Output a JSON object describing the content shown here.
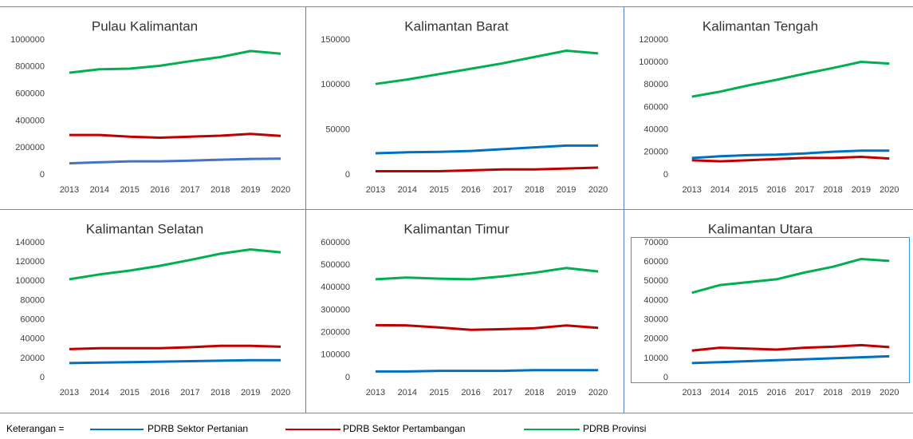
{
  "chart_data": [
    {
      "type": "line",
      "title": "Pulau Kalimantan",
      "categories": [
        "2013",
        "2014",
        "2015",
        "2016",
        "2017",
        "2018",
        "2019",
        "2020"
      ],
      "series": [
        {
          "color": "#4472c4",
          "values": [
            85000,
            93000,
            100000,
            100000,
            105000,
            112000,
            118000,
            120000
          ]
        },
        {
          "color": "#c00000",
          "values": [
            295000,
            295000,
            282000,
            275000,
            283000,
            290000,
            303000,
            288000
          ]
        },
        {
          "color": "#00b050",
          "values": [
            757000,
            782000,
            787000,
            808000,
            842000,
            873000,
            918000,
            898000
          ]
        }
      ],
      "ylim": [
        0,
        1000000
      ],
      "yticks": [
        0,
        200000,
        400000,
        600000,
        800000,
        1000000
      ]
    },
    {
      "type": "line",
      "title": "Kalimantan Barat",
      "categories": [
        "2013",
        "2014",
        "2015",
        "2016",
        "2017",
        "2018",
        "2019",
        "2020"
      ],
      "series": [
        {
          "color": "#0070c0",
          "values": [
            24000,
            25000,
            25500,
            26500,
            28500,
            30500,
            32500,
            32500
          ]
        },
        {
          "color": "#c00000",
          "values": [
            4000,
            4000,
            4000,
            5000,
            6000,
            6000,
            7000,
            8000
          ]
        },
        {
          "color": "#00b050",
          "values": [
            101000,
            106000,
            112000,
            118000,
            124000,
            131000,
            138000,
            135000
          ]
        }
      ],
      "ylim": [
        0,
        150000
      ],
      "yticks": [
        0,
        50000,
        100000,
        150000
      ]
    },
    {
      "type": "line",
      "title": "Kalimantan Tengah",
      "categories": [
        "2013",
        "2014",
        "2015",
        "2016",
        "2017",
        "2018",
        "2019",
        "2020"
      ],
      "series": [
        {
          "color": "#0070c0",
          "values": [
            15000,
            16500,
            17500,
            18000,
            19000,
            20500,
            21500,
            21500
          ]
        },
        {
          "color": "#c00000",
          "values": [
            13000,
            12000,
            13000,
            14000,
            15000,
            15000,
            16000,
            14500
          ]
        },
        {
          "color": "#00b050",
          "values": [
            69500,
            74000,
            79500,
            84500,
            90000,
            95000,
            100500,
            99000
          ]
        }
      ],
      "ylim": [
        0,
        120000
      ],
      "yticks": [
        0,
        20000,
        40000,
        60000,
        80000,
        100000,
        120000
      ]
    },
    {
      "type": "line",
      "title": "Kalimantan Selatan",
      "categories": [
        "2013",
        "2014",
        "2015",
        "2016",
        "2017",
        "2018",
        "2019",
        "2020"
      ],
      "series": [
        {
          "color": "#0070c0",
          "values": [
            15000,
            15500,
            16000,
            16500,
            17000,
            17500,
            18000,
            18000
          ]
        },
        {
          "color": "#c00000",
          "values": [
            29500,
            30500,
            30500,
            30500,
            31500,
            33000,
            33000,
            32000
          ]
        },
        {
          "color": "#00b050",
          "values": [
            102000,
            107000,
            111000,
            116000,
            122000,
            128500,
            133000,
            130000
          ]
        }
      ],
      "ylim": [
        0,
        140000
      ],
      "yticks": [
        0,
        20000,
        40000,
        60000,
        80000,
        100000,
        120000,
        140000
      ]
    },
    {
      "type": "line",
      "title": "Kalimantan Timur",
      "categories": [
        "2013",
        "2014",
        "2015",
        "2016",
        "2017",
        "2018",
        "2019",
        "2020"
      ],
      "series": [
        {
          "color": "#0070c0",
          "values": [
            27000,
            27000,
            30000,
            30000,
            30000,
            33000,
            33000,
            33000
          ]
        },
        {
          "color": "#c00000",
          "values": [
            233000,
            232000,
            223000,
            212000,
            215000,
            219000,
            232000,
            221000
          ]
        },
        {
          "color": "#00b050",
          "values": [
            437000,
            445000,
            440000,
            437000,
            450000,
            466000,
            487000,
            472000
          ]
        }
      ],
      "ylim": [
        0,
        600000
      ],
      "yticks": [
        0,
        100000,
        200000,
        300000,
        400000,
        500000,
        600000
      ]
    },
    {
      "type": "line",
      "title": "Kalimantan Utara",
      "categories": [
        "2013",
        "2014",
        "2015",
        "2016",
        "2017",
        "2018",
        "2019",
        "2020"
      ],
      "series": [
        {
          "color": "#0070c0",
          "values": [
            7500,
            8000,
            8500,
            9000,
            9500,
            10000,
            10500,
            11000
          ]
        },
        {
          "color": "#c00000",
          "values": [
            14000,
            15500,
            15000,
            14500,
            15500,
            16000,
            16800,
            15800
          ]
        },
        {
          "color": "#00b050",
          "values": [
            44000,
            48000,
            49500,
            51000,
            54500,
            57500,
            61500,
            60500
          ]
        }
      ],
      "ylim": [
        0,
        70000
      ],
      "yticks": [
        0,
        10000,
        20000,
        30000,
        40000,
        50000,
        60000,
        70000
      ]
    }
  ],
  "legend": {
    "title": "Keterangan =",
    "items": [
      {
        "name": "PDRB Sektor Pertanian",
        "color": "#0070c0"
      },
      {
        "name": "PDRB Sektor Pertambangan",
        "color": "#c00000"
      },
      {
        "name": "PDRB Provinsi",
        "color": "#00b050"
      }
    ]
  }
}
